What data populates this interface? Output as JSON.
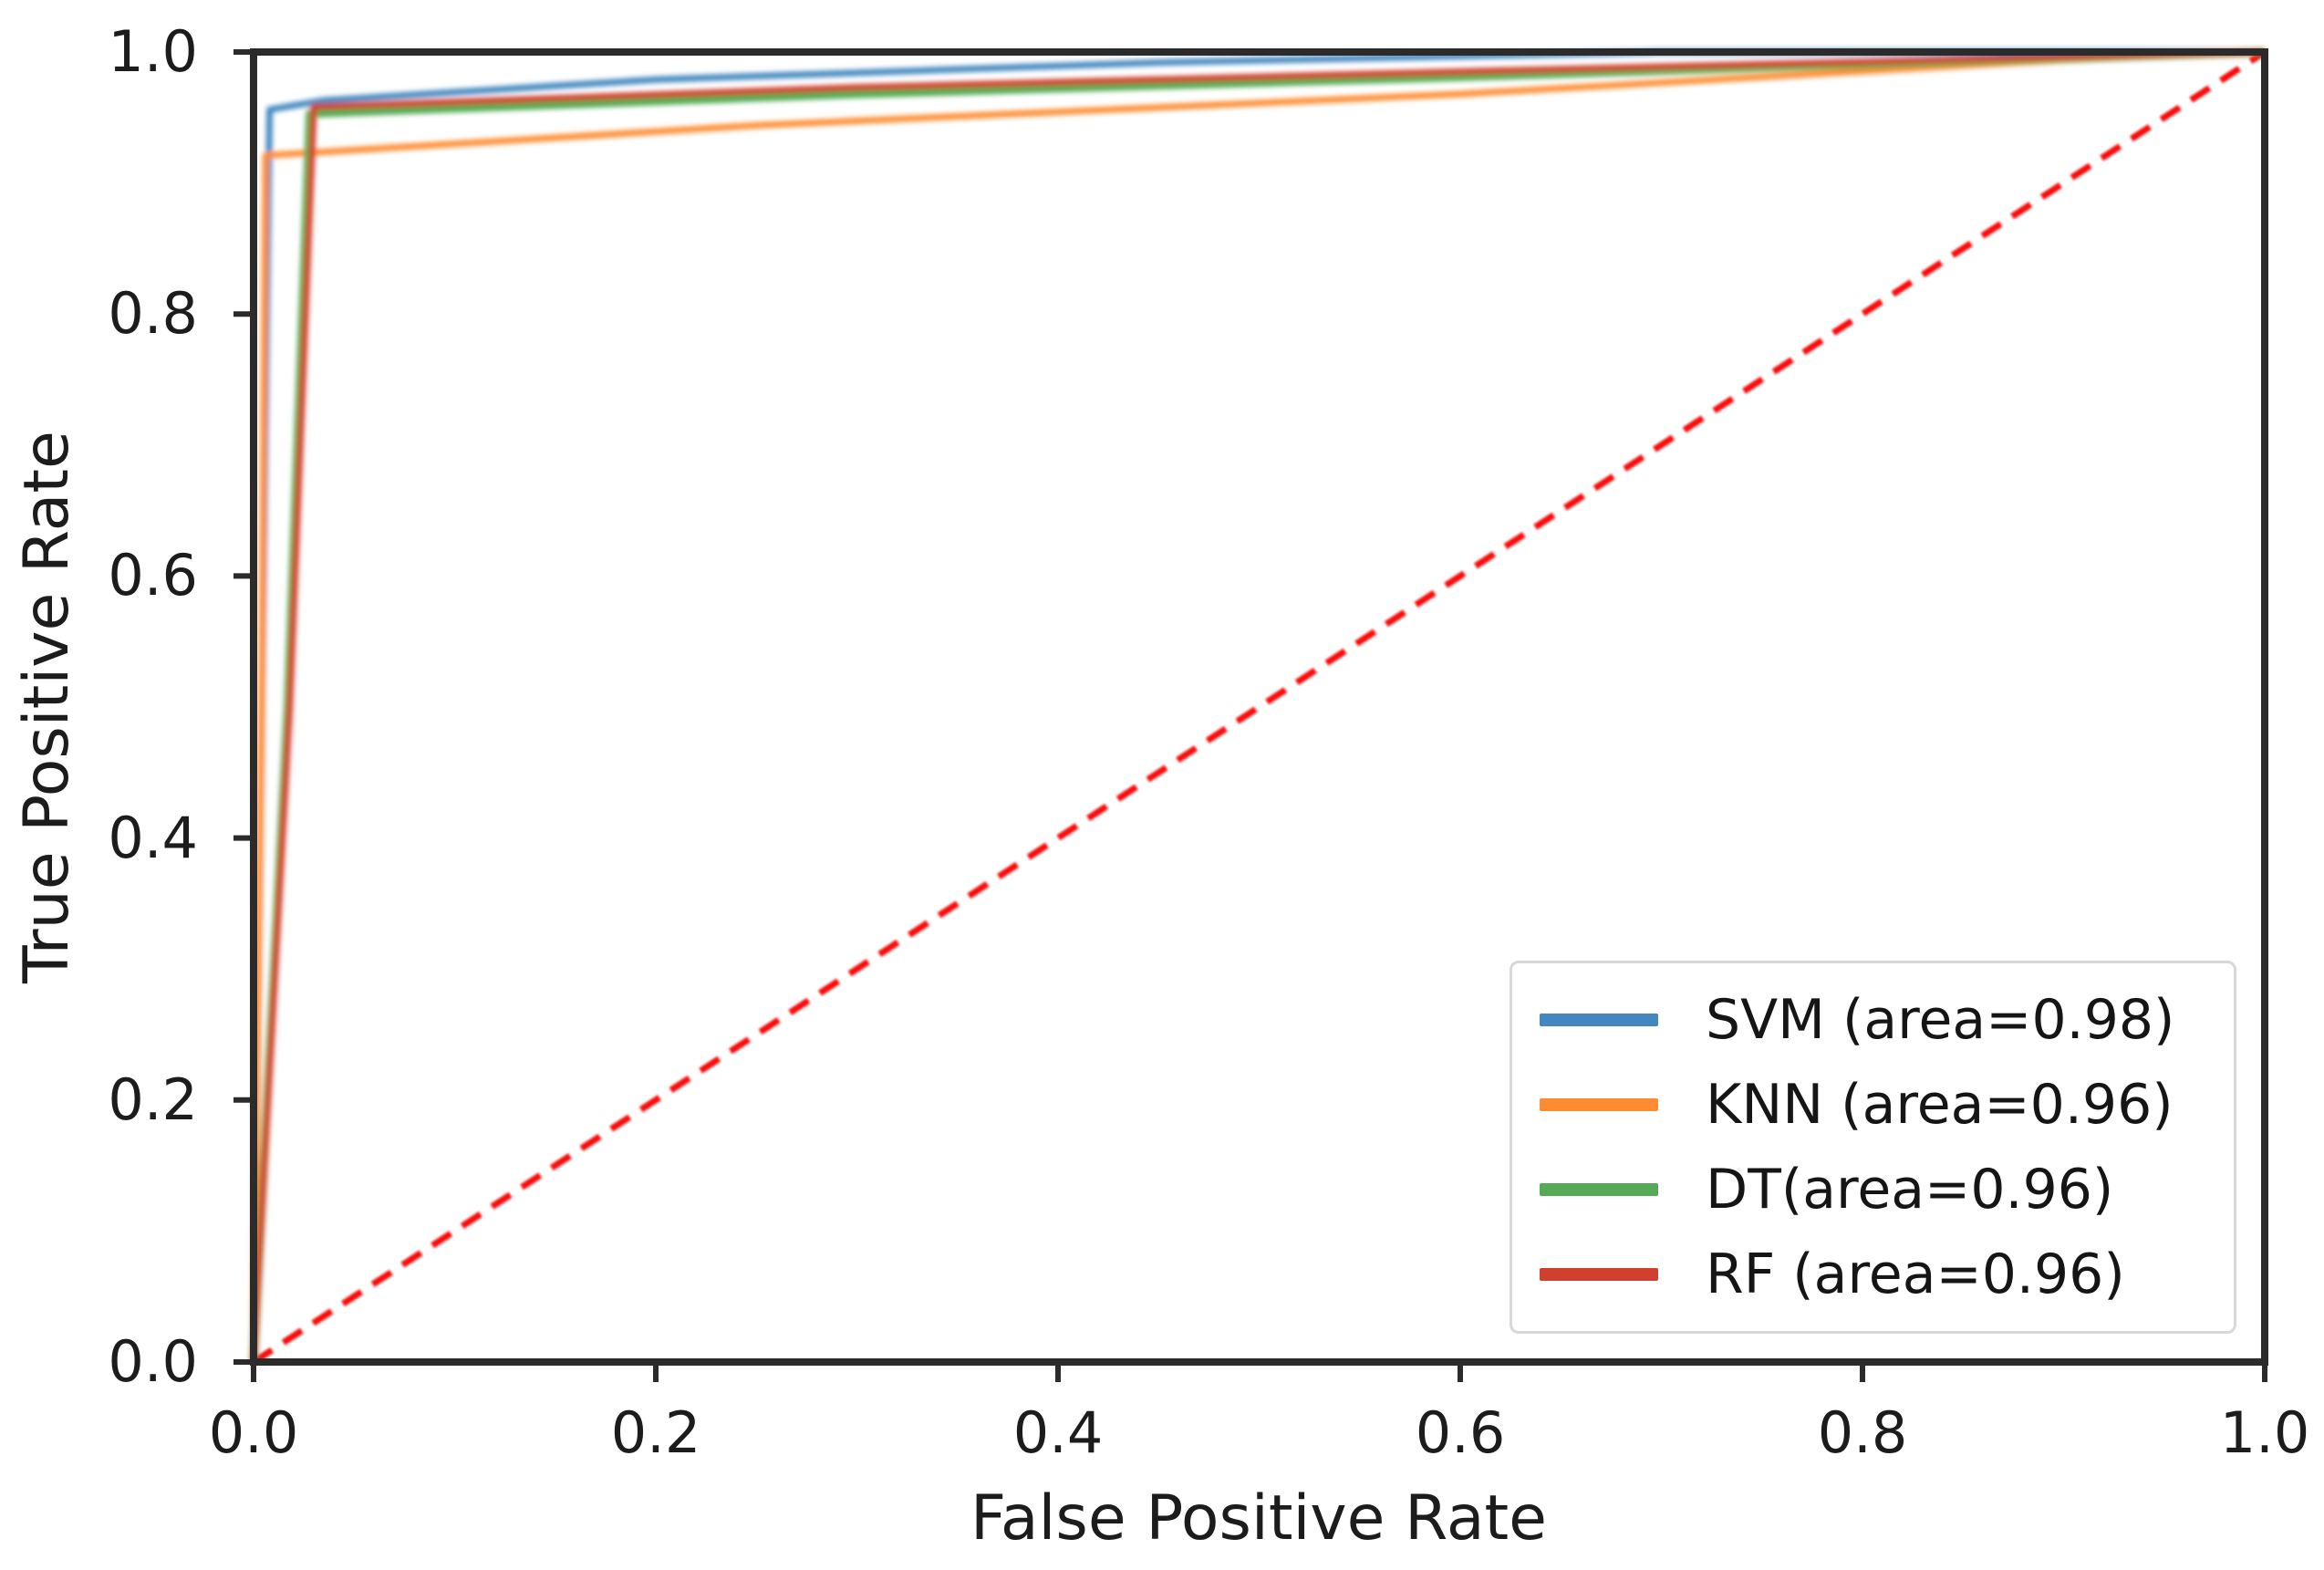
{
  "chart_data": {
    "type": "line",
    "title": "",
    "xlabel": "False Positive Rate",
    "ylabel": "True Positive Rate",
    "xlim": [
      0.0,
      1.0
    ],
    "ylim": [
      0.0,
      1.0
    ],
    "x_ticks": [
      "0.0",
      "0.2",
      "0.4",
      "0.6",
      "0.8",
      "1.0"
    ],
    "y_ticks": [
      "0.0",
      "0.2",
      "0.4",
      "0.6",
      "0.8",
      "1.0"
    ],
    "grid": false,
    "legend_position": "lower right",
    "frame_color": "#2b2b2b",
    "series": [
      {
        "name": "SVM",
        "label": "SVM (area=0.98)",
        "auc": 0.98,
        "color": "#4287bf",
        "width": 7,
        "points": [
          [
            0,
            0
          ],
          [
            0.008,
            0.956
          ],
          [
            0.035,
            0.963
          ],
          [
            0.2,
            0.979
          ],
          [
            0.45,
            0.992
          ],
          [
            0.7,
            1.0
          ],
          [
            1.0,
            1.0
          ]
        ]
      },
      {
        "name": "KNN",
        "label": "KNN (area=0.96)",
        "auc": 0.96,
        "color": "#ff8c33",
        "width": 7,
        "points": [
          [
            0,
            0
          ],
          [
            0.004,
            0.5
          ],
          [
            0.006,
            0.921
          ],
          [
            0.25,
            0.944
          ],
          [
            0.6,
            0.968
          ],
          [
            0.9,
            0.994
          ],
          [
            1.0,
            1.0
          ]
        ]
      },
      {
        "name": "DT",
        "label": "DT(area=0.96)",
        "auc": 0.96,
        "color": "#55ab55",
        "width": 9,
        "points": [
          [
            0,
            0
          ],
          [
            0.017,
            0.5
          ],
          [
            0.028,
            0.953
          ],
          [
            0.3,
            0.968
          ],
          [
            0.6,
            0.981
          ],
          [
            1.0,
            1.0
          ]
        ]
      },
      {
        "name": "RF",
        "label": "RF (area=0.96)",
        "auc": 0.96,
        "color": "#d0402f",
        "width": 7,
        "points": [
          [
            0,
            0
          ],
          [
            0.018,
            0.5
          ],
          [
            0.03,
            0.958
          ],
          [
            0.3,
            0.973
          ],
          [
            0.6,
            0.985
          ],
          [
            1.0,
            1.0
          ]
        ]
      }
    ],
    "reference_line": {
      "name": "chance-diagonal",
      "style": "dashed",
      "color": "#fb100c",
      "width": 7,
      "points": [
        [
          0,
          0
        ],
        [
          1.0,
          1.0
        ]
      ]
    }
  }
}
